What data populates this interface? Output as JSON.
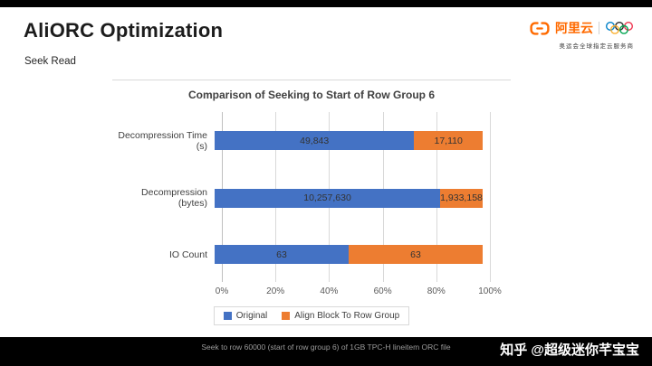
{
  "slide": {
    "title": "AliORC Optimization",
    "subtitle": "Seek Read"
  },
  "logo": {
    "brand": "阿里云",
    "tagline": "奥运会全球指定云服务商",
    "brand_color": "#FF6A00"
  },
  "chart_data": {
    "type": "bar",
    "orientation": "horizontal",
    "stacked_percent": true,
    "title": "Comparison of Seeking to Start of Row Group 6",
    "categories": [
      "Decompression Time (s)",
      "Decompression (bytes)",
      "IO Count"
    ],
    "series": [
      {
        "name": "Original",
        "color": "#4472C4",
        "values": [
          49843,
          10257630,
          63
        ]
      },
      {
        "name": "Align Block To Row Group",
        "color": "#ED7D31",
        "values": [
          17110,
          1933158,
          63
        ]
      }
    ],
    "data_labels": [
      [
        "49,843",
        "10,257,630",
        "63"
      ],
      [
        "17,110",
        "1,933,158",
        "63"
      ]
    ],
    "x_ticks": [
      "0%",
      "20%",
      "40%",
      "60%",
      "80%",
      "100%"
    ],
    "xlim": [
      0,
      100
    ],
    "grid": true,
    "legend_position": "bottom"
  },
  "footer": {
    "caption": "Seek to row 60000 (start of row group 6) of 1GB TPC-H lineitem ORC file",
    "watermark": "知乎 @超级迷你芊宝宝"
  }
}
